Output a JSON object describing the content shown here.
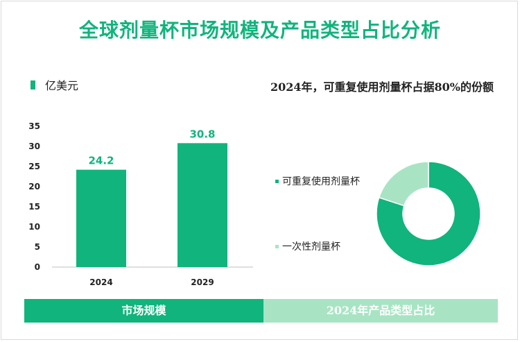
{
  "title": "全球剂量杯市场规模及产品类型占比分析",
  "colors": {
    "primary": "#10b47c",
    "secondary": "#a8e4c4"
  },
  "chart_data": [
    {
      "type": "bar",
      "legend": "亿美元",
      "categories": [
        "2024",
        "2029"
      ],
      "values": [
        24.2,
        30.8
      ],
      "value_labels": [
        "24.2",
        "30.8"
      ],
      "ylim": [
        0,
        35
      ],
      "yticks": [
        0,
        5,
        10,
        15,
        20,
        25,
        30,
        35
      ],
      "grid": false,
      "legend_placement": "top-left"
    },
    {
      "type": "pie",
      "donut": true,
      "title": "2024年，可重复使用剂量杯占据80%的份额",
      "labels": [
        "可重复使用剂量杯",
        "一次性剂量杯"
      ],
      "values": [
        80,
        20
      ],
      "legend_placement": "left"
    }
  ],
  "footer": {
    "left_label": "市场规模",
    "right_label": "2024年产品类型占比"
  }
}
